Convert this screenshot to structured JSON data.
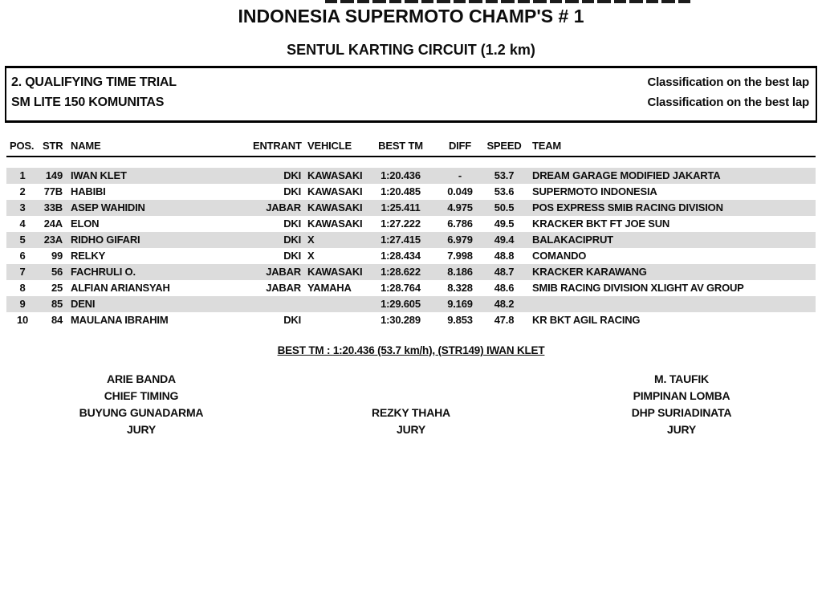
{
  "page": {
    "title": "INDONESIA SUPERMOTO CHAMP'S # 1",
    "subtitle": "SENTUL KARTING CIRCUIT (1.2 km)"
  },
  "session": {
    "name": "2. QUALIFYING TIME TRIAL",
    "class_name": "SM LITE 150 KOMUNITAS",
    "classification_label_top": "Classification on the best lap",
    "classification_label_bottom": "Classification on the best lap"
  },
  "table": {
    "headers": {
      "pos": "POS.",
      "str": "STR",
      "name": "NAME",
      "entrant": "ENTRANT",
      "vehicle": "VEHICLE",
      "best_tm": "BEST TM",
      "diff": "DIFF",
      "speed": "SPEED",
      "team": "TEAM"
    },
    "rows": [
      {
        "pos": "1",
        "str": "149",
        "name": "IWAN KLET",
        "entrant": "DKI",
        "vehicle": "KAWASAKI",
        "best_tm": "1:20.436",
        "diff": "-",
        "speed": "53.7",
        "team": "DREAM GARAGE MODIFIED JAKARTA"
      },
      {
        "pos": "2",
        "str": "77B",
        "name": "HABIBI",
        "entrant": "DKI",
        "vehicle": "KAWASAKI",
        "best_tm": "1:20.485",
        "diff": "0.049",
        "speed": "53.6",
        "team": "SUPERMOTO INDONESIA"
      },
      {
        "pos": "3",
        "str": "33B",
        "name": "ASEP WAHIDIN",
        "entrant": "JABAR",
        "vehicle": "KAWASAKI",
        "best_tm": "1:25.411",
        "diff": "4.975",
        "speed": "50.5",
        "team": "POS EXPRESS SMIB RACING DIVISION"
      },
      {
        "pos": "4",
        "str": "24A",
        "name": "ELON",
        "entrant": "DKI",
        "vehicle": "KAWASAKI",
        "best_tm": "1:27.222",
        "diff": "6.786",
        "speed": "49.5",
        "team": "KRACKER BKT FT JOE SUN"
      },
      {
        "pos": "5",
        "str": "23A",
        "name": "RIDHO GIFARI",
        "entrant": "DKI",
        "vehicle": "X",
        "best_tm": "1:27.415",
        "diff": "6.979",
        "speed": "49.4",
        "team": "BALAKACIPRUT"
      },
      {
        "pos": "6",
        "str": "99",
        "name": "RELKY",
        "entrant": "DKI",
        "vehicle": "X",
        "best_tm": "1:28.434",
        "diff": "7.998",
        "speed": "48.8",
        "team": "COMANDO"
      },
      {
        "pos": "7",
        "str": "56",
        "name": "FACHRULI O.",
        "entrant": "JABAR",
        "vehicle": "KAWASAKI",
        "best_tm": "1:28.622",
        "diff": "8.186",
        "speed": "48.7",
        "team": "KRACKER KARAWANG"
      },
      {
        "pos": "8",
        "str": "25",
        "name": "ALFIAN ARIANSYAH",
        "entrant": "JABAR",
        "vehicle": "YAMAHA",
        "best_tm": "1:28.764",
        "diff": "8.328",
        "speed": "48.6",
        "team": "SMIB RACING DIVISION XLIGHT AV GROUP"
      },
      {
        "pos": "9",
        "str": "85",
        "name": "DENI",
        "entrant": "",
        "vehicle": "",
        "best_tm": "1:29.605",
        "diff": "9.169",
        "speed": "48.2",
        "team": ""
      },
      {
        "pos": "10",
        "str": "84",
        "name": "MAULANA IBRAHIM",
        "entrant": "DKI",
        "vehicle": "",
        "best_tm": "1:30.289",
        "diff": "9.853",
        "speed": "47.8",
        "team": "KR BKT AGIL RACING"
      }
    ]
  },
  "summary": {
    "best_tm_line": "BEST TM : 1:20.436 (53.7 km/h), (STR149) IWAN KLET"
  },
  "officials": {
    "left": [
      "ARIE BANDA",
      "CHIEF TIMING",
      "BUYUNG GUNADARMA",
      "JURY"
    ],
    "center": [
      "REZKY THAHA",
      "JURY"
    ],
    "right": [
      "M. TAUFIK",
      "PIMPINAN LOMBA",
      "DHP SURIADINATA",
      "JURY"
    ]
  },
  "colors": {
    "stripe": "#dcdcdc",
    "text": "#0d0d0d",
    "rule": "#000000",
    "background": "#ffffff"
  }
}
